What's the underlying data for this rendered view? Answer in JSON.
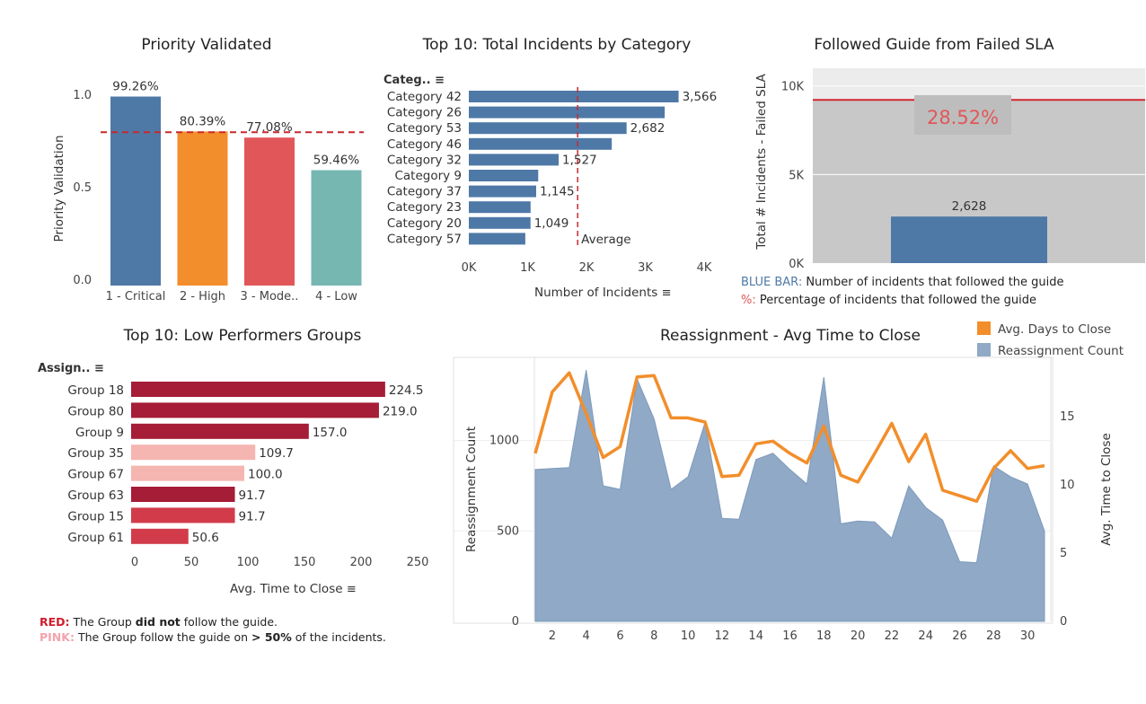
{
  "colors": {
    "blue": "#4e79a7",
    "orange": "#f28e2b",
    "red": "#e15759",
    "teal": "#76b7b2",
    "darkred": "#a51d36",
    "crimson": "#d13b4a",
    "pink": "#f5b5b0",
    "gray": "#c8c8c8"
  },
  "priority": {
    "title": "Priority Validated",
    "ylabel": "Priority Validation",
    "yticks": [
      "0.0",
      "0.5",
      "1.0"
    ]
  },
  "category": {
    "title": "Top 10: Total Incidents by Category",
    "header": "Categ..",
    "xlabel": "Number of Incidents",
    "xticks": [
      "0K",
      "1K",
      "2K",
      "3K",
      "4K"
    ],
    "avg_label": "Average"
  },
  "sla": {
    "title": "Followed Guide from Failed SLA",
    "ylabel": "Total # Incidents - Failed SLA",
    "yticks": [
      "0K",
      "5K",
      "10K"
    ],
    "pct_label": "28.52%",
    "bar_label": "2,628"
  },
  "sla_note": {
    "blue_key": "BLUE BAR:",
    "blue_text": " Number of incidents that followed the guide",
    "pct_key": "%:",
    "pct_text": " Percentage of incidents that followed the guide"
  },
  "groups": {
    "title": "Top 10: Low Performers Groups",
    "header": "Assign..",
    "xlabel": "Avg. Time to Close",
    "xticks": [
      "0",
      "50",
      "100",
      "150",
      "200",
      "250"
    ]
  },
  "group_note": {
    "red_key": "RED:",
    "red_text1": " The Group ",
    "red_bold": "did not",
    "red_text2": " follow the guide.",
    "pink_key": "PINK:",
    "pink_text1": " The Group follow the guide on ",
    "pink_bold": "> 50%",
    "pink_text2": " of the incidents."
  },
  "reassign": {
    "title": "Reassignment - Avg Time to Close",
    "ylabel_left": "Reassignment Count",
    "ylabel_right": "Avg. Time to Close",
    "left_ticks": [
      "0",
      "500",
      "1000"
    ],
    "right_ticks": [
      "0",
      "5",
      "10",
      "15"
    ],
    "xticks": [
      "2",
      "4",
      "6",
      "8",
      "10",
      "12",
      "14",
      "16",
      "18",
      "20",
      "22",
      "24",
      "26",
      "28",
      "30"
    ],
    "legend": [
      "Avg. Days to Close",
      "Reassignment Count"
    ]
  },
  "chart_data": [
    {
      "type": "bar",
      "title": "Priority Validated",
      "categories": [
        "1 - Critical",
        "2 - High",
        "3 - Mode..",
        "4 - Low"
      ],
      "values": [
        0.9926,
        0.8039,
        0.7708,
        0.5946
      ],
      "labels": [
        "99.26%",
        "80.39%",
        "77.08%",
        "59.46%"
      ],
      "reference_line": 0.8,
      "ylabel": "Priority Validation",
      "ylim": [
        0,
        1.1
      ]
    },
    {
      "type": "bar",
      "orientation": "horizontal",
      "title": "Top 10: Total Incidents by Category",
      "categories": [
        "Category 42",
        "Category 26",
        "Category 53",
        "Category 46",
        "Category 32",
        "Category 9",
        "Category 37",
        "Category 23",
        "Category 20",
        "Category 57"
      ],
      "values": [
        3566,
        3330,
        2682,
        2430,
        1527,
        1180,
        1145,
        1050,
        1049,
        960
      ],
      "labels": [
        "3,566",
        "",
        "2,682",
        "",
        "1,527",
        "",
        "1,145",
        "",
        "1,049",
        ""
      ],
      "average": 1850,
      "xlabel": "Number of Incidents",
      "xlim": [
        0,
        4500
      ]
    },
    {
      "type": "bar",
      "title": "Followed Guide from Failed SLA",
      "values": [
        2628
      ],
      "labels": [
        "2,628"
      ],
      "total": 9215,
      "percent": "28.52%",
      "ylabel": "Total # Incidents - Failed SLA",
      "ylim": [
        0,
        11000
      ]
    },
    {
      "type": "bar",
      "orientation": "horizontal",
      "title": "Top 10: Low Performers Groups",
      "categories": [
        "Group 18",
        "Group 80",
        "Group 9",
        "Group 35",
        "Group 67",
        "Group 63",
        "Group 15",
        "Group 61"
      ],
      "values": [
        224.5,
        219.0,
        157.0,
        109.7,
        100.0,
        91.7,
        91.7,
        50.6
      ],
      "labels": [
        "224.5",
        "219.0",
        "157.0",
        "109.7",
        "100.0",
        "91.7",
        "91.7",
        "50.6"
      ],
      "colors": [
        "darkred",
        "darkred",
        "darkred",
        "pink",
        "pink",
        "darkred",
        "crimson",
        "crimson"
      ],
      "xlabel": "Avg. Time to Close",
      "xlim": [
        0,
        275
      ]
    },
    {
      "type": "area",
      "title": "Reassignment - Avg Time to Close",
      "x": [
        1,
        2,
        3,
        4,
        5,
        6,
        7,
        8,
        9,
        10,
        11,
        12,
        13,
        14,
        15,
        16,
        17,
        18,
        19,
        20,
        21,
        22,
        23,
        24,
        25,
        26,
        27,
        28,
        29,
        30,
        31
      ],
      "series": [
        {
          "name": "Reassignment Count",
          "type": "area",
          "axis": "left",
          "values": [
            840,
            845,
            850,
            1390,
            750,
            730,
            1340,
            1120,
            730,
            800,
            1100,
            570,
            565,
            895,
            930,
            840,
            760,
            1350,
            540,
            555,
            550,
            460,
            750,
            630,
            560,
            330,
            325,
            860,
            800,
            760,
            500
          ]
        },
        {
          "name": "Avg. Days to Close",
          "type": "line",
          "axis": "right",
          "values": [
            12.3,
            16.8,
            18.2,
            15.2,
            12.0,
            12.8,
            17.9,
            18.0,
            14.9,
            14.9,
            14.6,
            10.6,
            10.7,
            13.0,
            13.2,
            12.3,
            11.6,
            14.3,
            10.7,
            10.2,
            12.3,
            14.5,
            11.7,
            13.7,
            9.6,
            9.2,
            8.8,
            11.2,
            12.5,
            11.2,
            11.4
          ]
        }
      ],
      "ylabel_left": "Reassignment Count",
      "ylabel_right": "Avg. Time to Close",
      "ylim_left": [
        0,
        1450
      ],
      "ylim_right": [
        0,
        19.2
      ]
    }
  ]
}
